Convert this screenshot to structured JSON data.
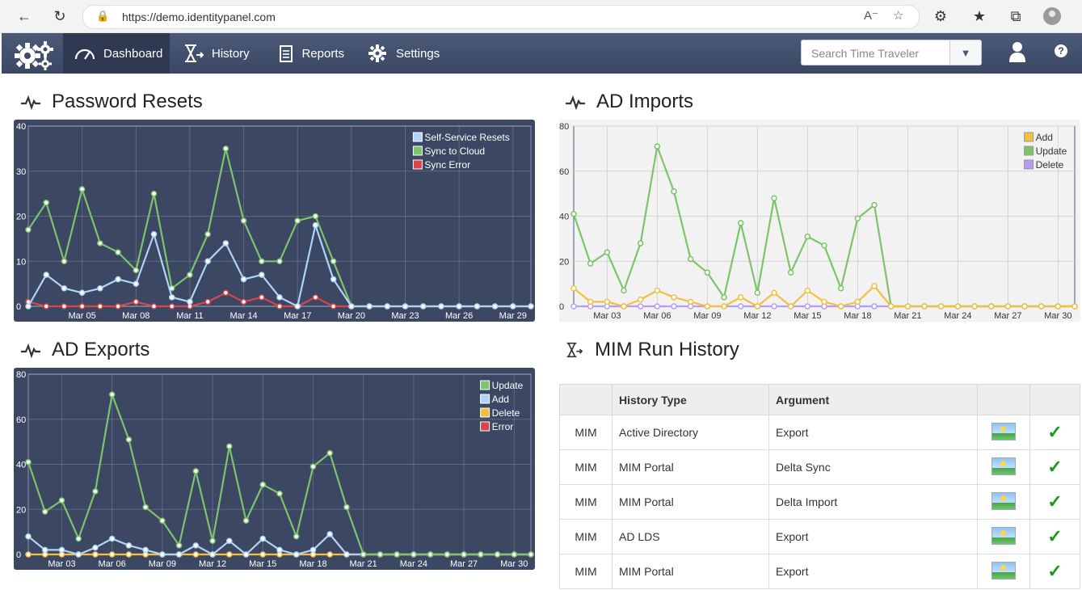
{
  "browser": {
    "url": "https://demo.identitypanel.com"
  },
  "nav": {
    "items": [
      {
        "label": "Dashboard",
        "icon": "speedometer-icon"
      },
      {
        "label": "History",
        "icon": "hourglass-icon"
      },
      {
        "label": "Reports",
        "icon": "clipboard-icon"
      },
      {
        "label": "Settings",
        "icon": "gear-icon"
      }
    ],
    "search_placeholder": "Search Time Traveler"
  },
  "sections": {
    "password_resets": "Password Resets",
    "ad_imports": "AD Imports",
    "ad_exports": "AD Exports",
    "mim_run_history": "MIM Run History"
  },
  "colors": {
    "dark_chart_bg": "#3b4763",
    "light_chart_bg": "#f2f2f2",
    "green": "#7dc36c",
    "light_blue": "#b0d4f5",
    "red": "#d9454a",
    "yellow": "#f0c040",
    "purple": "#b69cf5"
  },
  "chart_data": [
    {
      "type": "line",
      "title": "Password Resets",
      "ylim": [
        0,
        40
      ],
      "yticks": [
        0,
        10,
        20,
        30,
        40
      ],
      "x_tick_labels": [
        "Mar 05",
        "Mar 08",
        "Mar 11",
        "Mar 14",
        "Mar 17",
        "Mar 20",
        "Mar 23",
        "Mar 26",
        "Mar 29"
      ],
      "x_tick_index": [
        3,
        6,
        9,
        12,
        15,
        18,
        21,
        24,
        27
      ],
      "legend": "top-right",
      "series": [
        {
          "name": "Self-Service Resets",
          "color": "#b0d4f5",
          "values": [
            0,
            7,
            4,
            3,
            4,
            6,
            5,
            16,
            2,
            1,
            10,
            14,
            6,
            7,
            2,
            0,
            18,
            6,
            0,
            0,
            0,
            0,
            0,
            0,
            0,
            0,
            0,
            0,
            0
          ]
        },
        {
          "name": "Sync to Cloud",
          "color": "#7dc36c",
          "values": [
            17,
            23,
            10,
            26,
            14,
            12,
            8,
            25,
            4,
            7,
            16,
            35,
            19,
            10,
            10,
            19,
            20,
            10,
            0,
            0,
            0,
            0,
            0,
            0,
            0,
            0,
            0,
            0,
            0
          ]
        },
        {
          "name": "Sync Error",
          "color": "#d9454a",
          "values": [
            1,
            0,
            0,
            0,
            0,
            0,
            1,
            0,
            0,
            0,
            1,
            3,
            1,
            2,
            0,
            0,
            2,
            0,
            0,
            0,
            0,
            0,
            0,
            0,
            0,
            0,
            0,
            0,
            0
          ]
        }
      ]
    },
    {
      "type": "line",
      "title": "AD Imports",
      "ylim": [
        0,
        80
      ],
      "yticks": [
        0,
        20,
        40,
        60,
        80
      ],
      "x_tick_labels": [
        "Mar 03",
        "Mar 06",
        "Mar 09",
        "Mar 12",
        "Mar 15",
        "Mar 18",
        "Mar 21",
        "Mar 24",
        "Mar 27",
        "Mar 30"
      ],
      "x_tick_index": [
        2,
        5,
        8,
        11,
        14,
        17,
        20,
        23,
        26,
        29
      ],
      "legend": "top-right",
      "series": [
        {
          "name": "Add",
          "color": "#f0c040",
          "values": [
            8,
            2,
            2,
            0,
            3,
            7,
            4,
            2,
            0,
            0,
            4,
            0,
            6,
            0,
            7,
            2,
            0,
            2,
            9,
            0,
            0,
            0,
            0,
            0,
            0,
            0,
            0,
            0,
            0,
            0,
            0
          ]
        },
        {
          "name": "Update",
          "color": "#7dc36c",
          "values": [
            41,
            19,
            24,
            7,
            28,
            71,
            51,
            21,
            15,
            4,
            37,
            6,
            48,
            15,
            31,
            27,
            8,
            39,
            45,
            0,
            0,
            0,
            0,
            0,
            0,
            0,
            0,
            0,
            0,
            0,
            0
          ]
        },
        {
          "name": "Delete",
          "color": "#b69cf5",
          "values": [
            0,
            0,
            0,
            0,
            0,
            0,
            0,
            0,
            0,
            0,
            0,
            0,
            0,
            0,
            0,
            0,
            0,
            0,
            0,
            0,
            0,
            0,
            0,
            0,
            0,
            0,
            0,
            0,
            0,
            0,
            0
          ]
        }
      ]
    },
    {
      "type": "line",
      "title": "AD Exports",
      "ylim": [
        0,
        80
      ],
      "yticks": [
        0,
        20,
        40,
        60,
        80
      ],
      "x_tick_labels": [
        "Mar 03",
        "Mar 06",
        "Mar 09",
        "Mar 12",
        "Mar 15",
        "Mar 18",
        "Mar 21",
        "Mar 24",
        "Mar 27",
        "Mar 30"
      ],
      "x_tick_index": [
        2,
        5,
        8,
        11,
        14,
        17,
        20,
        23,
        26,
        29
      ],
      "legend": "top-right",
      "series": [
        {
          "name": "Update",
          "color": "#7dc36c",
          "values": [
            41,
            19,
            24,
            7,
            28,
            71,
            51,
            21,
            15,
            4,
            37,
            6,
            48,
            15,
            31,
            27,
            8,
            39,
            45,
            21,
            0,
            0,
            0,
            0,
            0,
            0,
            0,
            0,
            0,
            0,
            0
          ]
        },
        {
          "name": "Add",
          "color": "#b0d4f5",
          "values": [
            8,
            2,
            2,
            0,
            3,
            7,
            4,
            2,
            0,
            0,
            4,
            0,
            6,
            0,
            7,
            2,
            0,
            2,
            9,
            0,
            0,
            0,
            0,
            0,
            0,
            0,
            0,
            0,
            0,
            0,
            0
          ]
        },
        {
          "name": "Delete",
          "color": "#f0c040",
          "values": [
            0,
            0,
            0,
            0,
            0,
            0,
            0,
            0,
            0,
            0,
            0,
            0,
            0,
            0,
            0,
            0,
            0,
            0,
            0,
            0,
            0,
            0,
            0,
            0,
            0,
            0,
            0,
            0,
            0,
            0,
            0
          ]
        },
        {
          "name": "Error",
          "color": "#d9454a",
          "values": [
            0,
            0,
            0,
            0,
            0,
            0,
            0,
            0,
            0,
            0,
            0,
            0,
            0,
            0,
            0,
            0,
            0,
            0,
            0,
            0,
            0,
            0,
            0,
            0,
            0,
            0,
            0,
            0,
            0,
            0,
            0
          ]
        }
      ]
    }
  ],
  "mim_table": {
    "headers": [
      "",
      "History Type",
      "Argument",
      "",
      ""
    ],
    "rows": [
      {
        "source": "MIM",
        "type": "Active Directory",
        "argument": "Export"
      },
      {
        "source": "MIM",
        "type": "MIM Portal",
        "argument": "Delta Sync"
      },
      {
        "source": "MIM",
        "type": "MIM Portal",
        "argument": "Delta Import"
      },
      {
        "source": "MIM",
        "type": "AD LDS",
        "argument": "Export"
      },
      {
        "source": "MIM",
        "type": "MIM Portal",
        "argument": "Export"
      }
    ]
  }
}
